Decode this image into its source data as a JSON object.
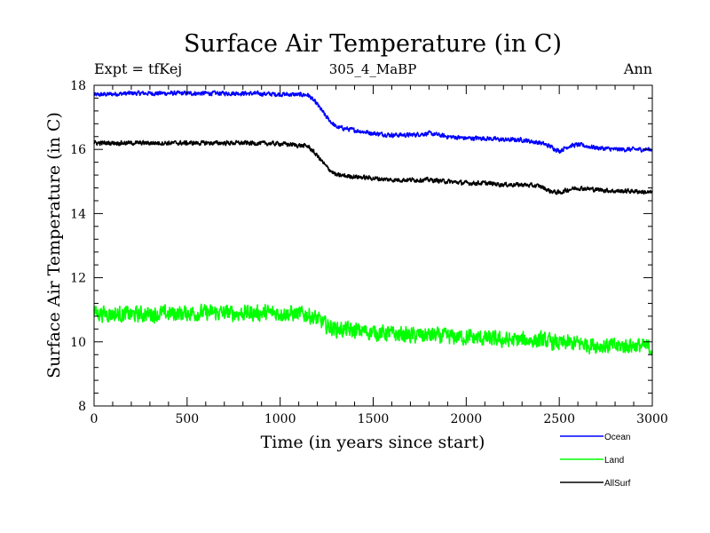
{
  "chart_data": {
    "type": "line",
    "title": "Surface Air Temperature (in C)",
    "subtitle": "305_4_MaBP",
    "left_label": "Expt = tfKej",
    "right_label": "Ann",
    "xlabel": "Time (in years since start)",
    "ylabel": "Surface Air Temperature (in C)",
    "xlim": [
      0,
      3000
    ],
    "ylim": [
      8,
      18
    ],
    "xticks": [
      0,
      500,
      1000,
      1500,
      2000,
      2500,
      3000
    ],
    "yticks": [
      8,
      10,
      12,
      14,
      16,
      18
    ],
    "grid": false,
    "legend_position": "bottom-right",
    "series": [
      {
        "name": "Ocean",
        "color": "#0000ff",
        "noise": 0.06,
        "x": [
          0,
          200,
          500,
          800,
          1000,
          1150,
          1200,
          1250,
          1300,
          1400,
          1500,
          1600,
          1700,
          1800,
          1900,
          2000,
          2100,
          2200,
          2300,
          2400,
          2450,
          2500,
          2550,
          2600,
          2700,
          2800,
          2900,
          3000
        ],
        "values": [
          17.7,
          17.75,
          17.75,
          17.75,
          17.72,
          17.7,
          17.4,
          17.0,
          16.7,
          16.6,
          16.5,
          16.45,
          16.45,
          16.5,
          16.4,
          16.35,
          16.35,
          16.3,
          16.3,
          16.2,
          16.1,
          15.95,
          16.1,
          16.15,
          16.05,
          16.0,
          16.0,
          16.0
        ]
      },
      {
        "name": "Land",
        "color": "#00ff00",
        "noise": 0.22,
        "x": [
          0,
          200,
          500,
          800,
          1000,
          1150,
          1200,
          1250,
          1300,
          1400,
          1500,
          1600,
          1700,
          1800,
          1900,
          2000,
          2100,
          2200,
          2300,
          2400,
          2500,
          2600,
          2700,
          2800,
          2900,
          3000
        ],
        "values": [
          10.9,
          10.85,
          10.9,
          10.9,
          10.9,
          10.85,
          10.7,
          10.5,
          10.4,
          10.35,
          10.3,
          10.25,
          10.2,
          10.2,
          10.15,
          10.15,
          10.1,
          10.05,
          10.05,
          10.05,
          9.95,
          9.95,
          9.9,
          9.85,
          9.9,
          9.8
        ]
      },
      {
        "name": "AllSurf",
        "color": "#000000",
        "noise": 0.06,
        "x": [
          0,
          200,
          500,
          800,
          1000,
          1150,
          1200,
          1250,
          1300,
          1400,
          1500,
          1600,
          1700,
          1800,
          1900,
          2000,
          2100,
          2200,
          2300,
          2400,
          2450,
          2500,
          2550,
          2600,
          2700,
          2800,
          2900,
          3000
        ],
        "values": [
          16.2,
          16.2,
          16.2,
          16.2,
          16.18,
          16.1,
          15.8,
          15.45,
          15.2,
          15.15,
          15.1,
          15.05,
          15.05,
          15.05,
          15.0,
          14.95,
          14.95,
          14.9,
          14.9,
          14.85,
          14.7,
          14.65,
          14.75,
          14.8,
          14.75,
          14.7,
          14.7,
          14.65
        ]
      }
    ]
  }
}
